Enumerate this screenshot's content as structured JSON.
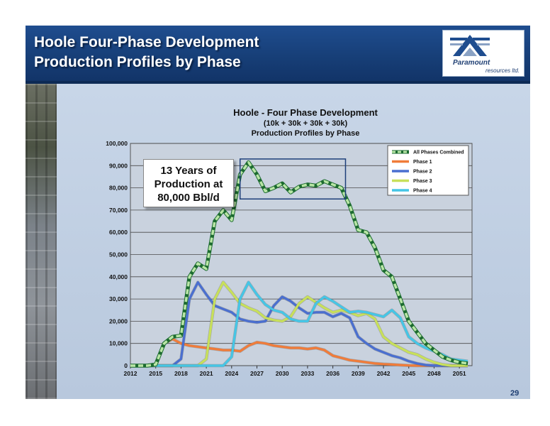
{
  "header": {
    "title_line_1": "Hoole Four-Phase Development",
    "title_line_2": "Production Profiles by Phase"
  },
  "logo": {
    "name": "Paramount",
    "subtitle": "resources ltd."
  },
  "page_number": "29",
  "callout": {
    "line_1": "13 Years of",
    "line_2": "Production at",
    "line_3": "80,000 Bbl/d"
  },
  "colors": {
    "header_bg": "#1a4480",
    "panel_bg": "#c3d2e5",
    "all_phases": "#2fa84f",
    "all_phases_fill": "#b9e6a6",
    "phase_1": "#f07c3a",
    "phase_2": "#4a6fd0",
    "phase_3": "#c8e05a",
    "phase_4": "#45c6e6",
    "highlight_box": "#1e3f7a"
  },
  "chart_data": {
    "type": "line",
    "title": "Hoole - Four Phase Development",
    "subtitle_1": "(10k + 30k + 30k + 30k)",
    "subtitle_2": "Production Profiles by Phase",
    "xlabel": "",
    "ylabel": "",
    "ylim": [
      0,
      100000
    ],
    "y_ticks": [
      "0",
      "10,000",
      "20,000",
      "30,000",
      "40,000",
      "50,000",
      "60,000",
      "70,000",
      "80,000",
      "90,000",
      "100,000"
    ],
    "x_ticks": [
      "2012",
      "2015",
      "2018",
      "2021",
      "2024",
      "2027",
      "2030",
      "2033",
      "2036",
      "2039",
      "2042",
      "2045",
      "2048",
      "2051"
    ],
    "grid": "horizontal",
    "legend_position": "top-right",
    "highlight_window": {
      "x_range": [
        2025,
        2037.5
      ],
      "y_range": [
        75000,
        93000
      ]
    },
    "series": [
      {
        "name": "All Phases Combined",
        "style": "dashed",
        "points": [
          [
            2012,
            0
          ],
          [
            2013,
            0
          ],
          [
            2014,
            0
          ],
          [
            2015,
            500
          ],
          [
            2016,
            10000
          ],
          [
            2017,
            13000
          ],
          [
            2018,
            13500
          ],
          [
            2019,
            40000
          ],
          [
            2020,
            46000
          ],
          [
            2021,
            43500
          ],
          [
            2022,
            65000
          ],
          [
            2023,
            70000
          ],
          [
            2024,
            65500
          ],
          [
            2025,
            86000
          ],
          [
            2026,
            91500
          ],
          [
            2027,
            86000
          ],
          [
            2028,
            78500
          ],
          [
            2029,
            80000
          ],
          [
            2030,
            82000
          ],
          [
            2031,
            78000
          ],
          [
            2032,
            80500
          ],
          [
            2033,
            81500
          ],
          [
            2034,
            81000
          ],
          [
            2035,
            83000
          ],
          [
            2036,
            81500
          ],
          [
            2037,
            80000
          ],
          [
            2038,
            72000
          ],
          [
            2039,
            61000
          ],
          [
            2040,
            60000
          ],
          [
            2041,
            53000
          ],
          [
            2042,
            43000
          ],
          [
            2043,
            40000
          ],
          [
            2044,
            30000
          ],
          [
            2045,
            20000
          ],
          [
            2046,
            15000
          ],
          [
            2047,
            10000
          ],
          [
            2048,
            7000
          ],
          [
            2049,
            4000
          ],
          [
            2050,
            2500
          ],
          [
            2051,
            1500
          ],
          [
            2052,
            1000
          ]
        ]
      },
      {
        "name": "Phase 1",
        "points": [
          [
            2012,
            0
          ],
          [
            2013,
            0
          ],
          [
            2014,
            0
          ],
          [
            2015,
            500
          ],
          [
            2016,
            10000
          ],
          [
            2017,
            12000
          ],
          [
            2018,
            10000
          ],
          [
            2019,
            9000
          ],
          [
            2020,
            8500
          ],
          [
            2021,
            8000
          ],
          [
            2022,
            7500
          ],
          [
            2023,
            7000
          ],
          [
            2024,
            7000
          ],
          [
            2025,
            6500
          ],
          [
            2026,
            9000
          ],
          [
            2027,
            10500
          ],
          [
            2028,
            10000
          ],
          [
            2029,
            9000
          ],
          [
            2030,
            8500
          ],
          [
            2031,
            8000
          ],
          [
            2032,
            8000
          ],
          [
            2033,
            7500
          ],
          [
            2034,
            8000
          ],
          [
            2035,
            7000
          ],
          [
            2036,
            4500
          ],
          [
            2037,
            3500
          ],
          [
            2038,
            2500
          ],
          [
            2039,
            2000
          ],
          [
            2040,
            1500
          ],
          [
            2041,
            1000
          ],
          [
            2042,
            700
          ],
          [
            2043,
            500
          ],
          [
            2044,
            300
          ],
          [
            2045,
            100
          ],
          [
            2046,
            0
          ],
          [
            2052,
            0
          ]
        ]
      },
      {
        "name": "Phase 2",
        "points": [
          [
            2012,
            0
          ],
          [
            2013,
            0
          ],
          [
            2014,
            0
          ],
          [
            2015,
            0
          ],
          [
            2016,
            0
          ],
          [
            2017,
            0
          ],
          [
            2018,
            3000
          ],
          [
            2019,
            30000
          ],
          [
            2020,
            37500
          ],
          [
            2021,
            32000
          ],
          [
            2022,
            27000
          ],
          [
            2023,
            25500
          ],
          [
            2024,
            24000
          ],
          [
            2025,
            21000
          ],
          [
            2026,
            20000
          ],
          [
            2027,
            19500
          ],
          [
            2028,
            20000
          ],
          [
            2029,
            27000
          ],
          [
            2030,
            31000
          ],
          [
            2031,
            29000
          ],
          [
            2032,
            26000
          ],
          [
            2033,
            23500
          ],
          [
            2034,
            24000
          ],
          [
            2035,
            24000
          ],
          [
            2036,
            22000
          ],
          [
            2037,
            23500
          ],
          [
            2038,
            21500
          ],
          [
            2039,
            13000
          ],
          [
            2040,
            10000
          ],
          [
            2041,
            7500
          ],
          [
            2042,
            6000
          ],
          [
            2043,
            4500
          ],
          [
            2044,
            3500
          ],
          [
            2045,
            2000
          ],
          [
            2046,
            1000
          ],
          [
            2047,
            300
          ],
          [
            2048,
            0
          ],
          [
            2052,
            0
          ]
        ]
      },
      {
        "name": "Phase 3",
        "points": [
          [
            2012,
            0
          ],
          [
            2013,
            0
          ],
          [
            2014,
            0
          ],
          [
            2015,
            0
          ],
          [
            2016,
            0
          ],
          [
            2017,
            0
          ],
          [
            2018,
            0
          ],
          [
            2019,
            0
          ],
          [
            2020,
            0
          ],
          [
            2021,
            3000
          ],
          [
            2022,
            30000
          ],
          [
            2023,
            37500
          ],
          [
            2024,
            33000
          ],
          [
            2025,
            28000
          ],
          [
            2026,
            26000
          ],
          [
            2027,
            24500
          ],
          [
            2028,
            21500
          ],
          [
            2029,
            20500
          ],
          [
            2030,
            20000
          ],
          [
            2031,
            22000
          ],
          [
            2032,
            28000
          ],
          [
            2033,
            31000
          ],
          [
            2034,
            28500
          ],
          [
            2035,
            26000
          ],
          [
            2036,
            24000
          ],
          [
            2037,
            25000
          ],
          [
            2038,
            24000
          ],
          [
            2039,
            22500
          ],
          [
            2040,
            23500
          ],
          [
            2041,
            21000
          ],
          [
            2042,
            13000
          ],
          [
            2043,
            10000
          ],
          [
            2044,
            8000
          ],
          [
            2045,
            6000
          ],
          [
            2046,
            5000
          ],
          [
            2047,
            3000
          ],
          [
            2048,
            1500
          ],
          [
            2049,
            500
          ],
          [
            2050,
            0
          ],
          [
            2052,
            0
          ]
        ]
      },
      {
        "name": "Phase 4",
        "points": [
          [
            2012,
            0
          ],
          [
            2013,
            0
          ],
          [
            2014,
            0
          ],
          [
            2015,
            0
          ],
          [
            2016,
            0
          ],
          [
            2017,
            0
          ],
          [
            2018,
            0
          ],
          [
            2019,
            0
          ],
          [
            2020,
            0
          ],
          [
            2021,
            0
          ],
          [
            2022,
            0
          ],
          [
            2023,
            0
          ],
          [
            2024,
            4000
          ],
          [
            2025,
            30000
          ],
          [
            2026,
            37500
          ],
          [
            2027,
            32000
          ],
          [
            2028,
            27500
          ],
          [
            2029,
            25000
          ],
          [
            2030,
            24000
          ],
          [
            2031,
            21000
          ],
          [
            2032,
            20000
          ],
          [
            2033,
            20000
          ],
          [
            2034,
            28000
          ],
          [
            2035,
            31000
          ],
          [
            2036,
            29000
          ],
          [
            2037,
            26500
          ],
          [
            2038,
            24000
          ],
          [
            2039,
            24500
          ],
          [
            2040,
            24000
          ],
          [
            2041,
            23000
          ],
          [
            2042,
            22000
          ],
          [
            2043,
            25000
          ],
          [
            2044,
            21500
          ],
          [
            2045,
            13000
          ],
          [
            2046,
            10000
          ],
          [
            2047,
            8000
          ],
          [
            2048,
            6500
          ],
          [
            2049,
            5000
          ],
          [
            2050,
            3000
          ],
          [
            2051,
            2500
          ],
          [
            2052,
            2000
          ]
        ]
      }
    ]
  }
}
